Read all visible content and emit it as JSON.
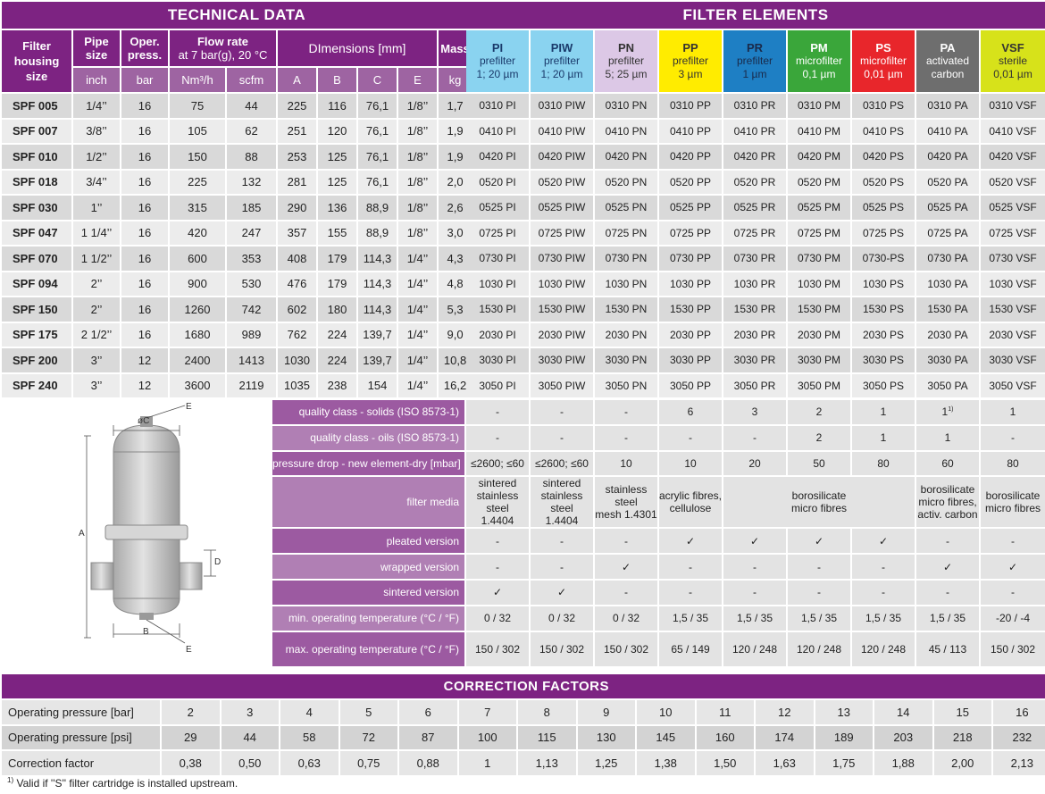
{
  "tech": {
    "title": "TECHNICAL DATA",
    "h_filter": [
      "Filter",
      "housing",
      "size"
    ],
    "h_pipe": [
      "Pipe",
      "size"
    ],
    "h_oper": [
      "Oper.",
      "press."
    ],
    "h_flow": "Flow rate",
    "h_flow_sub": "at 7 bar(g), 20 °C",
    "h_dims": "DImensions [mm]",
    "h_mass": "Mass",
    "units": [
      "inch",
      "bar",
      "Nm³/h",
      "scfm",
      "A",
      "B",
      "C",
      "E",
      "kg"
    ],
    "rows": [
      [
        "SPF 005",
        "1/4’’",
        "16",
        "75",
        "44",
        "225",
        "116",
        "76,1",
        "1/8’’",
        "1,7"
      ],
      [
        "SPF 007",
        "3/8’’",
        "16",
        "105",
        "62",
        "251",
        "120",
        "76,1",
        "1/8’’",
        "1,9"
      ],
      [
        "SPF 010",
        "1/2’’",
        "16",
        "150",
        "88",
        "253",
        "125",
        "76,1",
        "1/8’’",
        "1,9"
      ],
      [
        "SPF 018",
        "3/4’’",
        "16",
        "225",
        "132",
        "281",
        "125",
        "76,1",
        "1/8’’",
        "2,0"
      ],
      [
        "SPF 030",
        "1’’",
        "16",
        "315",
        "185",
        "290",
        "136",
        "88,9",
        "1/8’’",
        "2,6"
      ],
      [
        "SPF 047",
        "1 1/4’’",
        "16",
        "420",
        "247",
        "357",
        "155",
        "88,9",
        "1/8’’",
        "3,0"
      ],
      [
        "SPF 070",
        "1 1/2’’",
        "16",
        "600",
        "353",
        "408",
        "179",
        "114,3",
        "1/4’’",
        "4,3"
      ],
      [
        "SPF 094",
        "2’’",
        "16",
        "900",
        "530",
        "476",
        "179",
        "114,3",
        "1/4’’",
        "4,8"
      ],
      [
        "SPF 150",
        "2’’",
        "16",
        "1260",
        "742",
        "602",
        "180",
        "114,3",
        "1/4’’",
        "5,3"
      ],
      [
        "SPF 175",
        "2 1/2’’",
        "16",
        "1680",
        "989",
        "762",
        "224",
        "139,7",
        "1/4’’",
        "9,0"
      ],
      [
        "SPF 200",
        "3’’",
        "12",
        "2400",
        "1413",
        "1030",
        "224",
        "139,7",
        "1/4’’",
        "10,8"
      ],
      [
        "SPF 240",
        "3’’",
        "12",
        "3600",
        "2119",
        "1035",
        "238",
        "154",
        "1/4’’",
        "16,2"
      ]
    ]
  },
  "filters": {
    "title": "FILTER ELEMENTS",
    "columns": [
      {
        "code": "PI",
        "l1": "prefilter",
        "l2": "1; 20 µm",
        "bg": "#8ad3f0",
        "fg": "#1a3a6b"
      },
      {
        "code": "PIW",
        "l1": "prefilter",
        "l2": "1; 20 µm",
        "bg": "#8ad3f0",
        "fg": "#1a3a6b"
      },
      {
        "code": "PN",
        "l1": "prefilter",
        "l2": "5; 25 µm",
        "bg": "#dcc8e6",
        "fg": "#333333"
      },
      {
        "code": "PP",
        "l1": "prefilter",
        "l2": "3 µm",
        "bg": "#ffec00",
        "fg": "#333333"
      },
      {
        "code": "PR",
        "l1": "prefilter",
        "l2": "1 µm",
        "bg": "#1e7fc4",
        "fg": "#1a2a4a"
      },
      {
        "code": "PM",
        "l1": "microfilter",
        "l2": "0,1 µm",
        "bg": "#3aa63a",
        "fg": "#ffffff"
      },
      {
        "code": "PS",
        "l1": "microfilter",
        "l2": "0,01 µm",
        "bg": "#e8262b",
        "fg": "#ffffff"
      },
      {
        "code": "PA",
        "l1": "activated",
        "l2": "carbon",
        "bg": "#6e6e6e",
        "fg": "#ffffff"
      },
      {
        "code": "VSF",
        "l1": "sterile",
        "l2": "0,01 µm",
        "bg": "#d7e21a",
        "fg": "#333333"
      }
    ],
    "rows": [
      [
        "0310 PI",
        "0310 PIW",
        "0310 PN",
        "0310 PP",
        "0310 PR",
        "0310 PM",
        "0310 PS",
        "0310 PA",
        "0310 VSF"
      ],
      [
        "0410 PI",
        "0410 PIW",
        "0410 PN",
        "0410 PP",
        "0410 PR",
        "0410 PM",
        "0410 PS",
        "0410 PA",
        "0410 VSF"
      ],
      [
        "0420 PI",
        "0420 PIW",
        "0420 PN",
        "0420 PP",
        "0420 PR",
        "0420 PM",
        "0420 PS",
        "0420 PA",
        "0420 VSF"
      ],
      [
        "0520 PI",
        "0520 PIW",
        "0520 PN",
        "0520 PP",
        "0520 PR",
        "0520 PM",
        "0520 PS",
        "0520 PA",
        "0520 VSF"
      ],
      [
        "0525 PI",
        "0525 PIW",
        "0525 PN",
        "0525 PP",
        "0525 PR",
        "0525 PM",
        "0525 PS",
        "0525 PA",
        "0525 VSF"
      ],
      [
        "0725 PI",
        "0725 PIW",
        "0725 PN",
        "0725 PP",
        "0725 PR",
        "0725 PM",
        "0725 PS",
        "0725 PA",
        "0725 VSF"
      ],
      [
        "0730 PI",
        "0730 PIW",
        "0730 PN",
        "0730 PP",
        "0730 PR",
        "0730 PM",
        "0730-PS",
        "0730 PA",
        "0730 VSF"
      ],
      [
        "1030 PI",
        "1030 PIW",
        "1030 PN",
        "1030 PP",
        "1030 PR",
        "1030 PM",
        "1030 PS",
        "1030 PA",
        "1030 VSF"
      ],
      [
        "1530 PI",
        "1530 PIW",
        "1530 PN",
        "1530 PP",
        "1530 PR",
        "1530 PM",
        "1530 PS",
        "1530 PA",
        "1530 VSF"
      ],
      [
        "2030 PI",
        "2030 PIW",
        "2030 PN",
        "2030 PP",
        "2030 PR",
        "2030 PM",
        "2030 PS",
        "2030 PA",
        "2030 VSF"
      ],
      [
        "3030 PI",
        "3030 PIW",
        "3030 PN",
        "3030 PP",
        "3030 PR",
        "3030 PM",
        "3030 PS",
        "3030 PA",
        "3030 VSF"
      ],
      [
        "3050 PI",
        "3050 PIW",
        "3050 PN",
        "3050 PP",
        "3050 PR",
        "3050 PM",
        "3050 PS",
        "3050 PA",
        "3050 VSF"
      ]
    ]
  },
  "props": {
    "solids": {
      "label": "quality class - solids (ISO 8573-1)",
      "values": [
        "-",
        "-",
        "-",
        "6",
        "3",
        "2",
        "1",
        "1",
        "1"
      ],
      "pa_sup": "1)"
    },
    "oils": {
      "label": "quality class - oils (ISO 8573-1)",
      "values": [
        "-",
        "-",
        "-",
        "-",
        "-",
        "2",
        "1",
        "1",
        "-"
      ]
    },
    "pdrop": {
      "label": "pressure drop - new element-dry [mbar]",
      "values": [
        "≤2600; ≤60",
        "≤2600; ≤60",
        "10",
        "10",
        "20",
        "50",
        "80",
        "60",
        "80"
      ]
    },
    "media": {
      "label": "filter media",
      "pi": [
        "sintered",
        "stainless steel",
        "1.4404"
      ],
      "piw": [
        "sintered",
        "stainless steel",
        "1.4404"
      ],
      "pn": [
        "stainless steel",
        "mesh 1.4301"
      ],
      "pp": [
        "acrylic fibres,",
        "cellulose"
      ],
      "prps": [
        "borosilicate",
        "micro fibres"
      ],
      "pa": [
        "borosilicate",
        "micro fibres,",
        "activ. carbon"
      ],
      "vsf": [
        "borosilicate",
        "micro fibres"
      ]
    },
    "pleated": {
      "label": "pleated version",
      "values": [
        "-",
        "-",
        "-",
        "✓",
        "✓",
        "✓",
        "✓",
        "-",
        "-"
      ]
    },
    "wrapped": {
      "label": "wrapped version",
      "values": [
        "-",
        "-",
        "✓",
        "-",
        "-",
        "-",
        "-",
        "✓",
        "✓"
      ]
    },
    "sintered": {
      "label": "sintered version",
      "values": [
        "✓",
        "✓",
        "-",
        "-",
        "-",
        "-",
        "-",
        "-",
        "-"
      ]
    },
    "tmin": {
      "label": "min. operating temperature  (°C / °F)",
      "values": [
        "0 / 32",
        "0 / 32",
        "0 / 32",
        "1,5 / 35",
        "1,5 / 35",
        "1,5 / 35",
        "1,5 / 35",
        "1,5 / 35",
        "-20 / -4"
      ]
    },
    "tmax": {
      "label": "max. operating temperature  (°C / °F)",
      "values": [
        "150 / 302",
        "150 / 302",
        "150 / 302",
        "65 / 149",
        "120 / 248",
        "120 / 248",
        "120 / 248",
        "45 / 113",
        "150 / 302"
      ]
    }
  },
  "drawing": {
    "labels": [
      "øC",
      "E",
      "A",
      "D",
      "B",
      "E"
    ]
  },
  "corr": {
    "title": "CORRECTION FACTORS",
    "rows": [
      {
        "label": "Operating pressure [bar]",
        "values": [
          "2",
          "3",
          "4",
          "5",
          "6",
          "7",
          "8",
          "9",
          "10",
          "11",
          "12",
          "13",
          "14",
          "15",
          "16"
        ]
      },
      {
        "label": "Operating pressure [psi]",
        "values": [
          "29",
          "44",
          "58",
          "72",
          "87",
          "100",
          "115",
          "130",
          "145",
          "160",
          "174",
          "189",
          "203",
          "218",
          "232"
        ]
      },
      {
        "label": "Correction factor",
        "values": [
          "0,38",
          "0,50",
          "0,63",
          "0,75",
          "0,88",
          "1",
          "1,13",
          "1,25",
          "1,38",
          "1,50",
          "1,63",
          "1,75",
          "1,88",
          "2,00",
          "2,13"
        ]
      }
    ]
  },
  "footnote": {
    "mark": "1)",
    "text": "Valid if ''S'' filter cartridge is installed upstream."
  },
  "colors": {
    "purple": "#7d2382",
    "purple_light": "#9e64a2"
  }
}
